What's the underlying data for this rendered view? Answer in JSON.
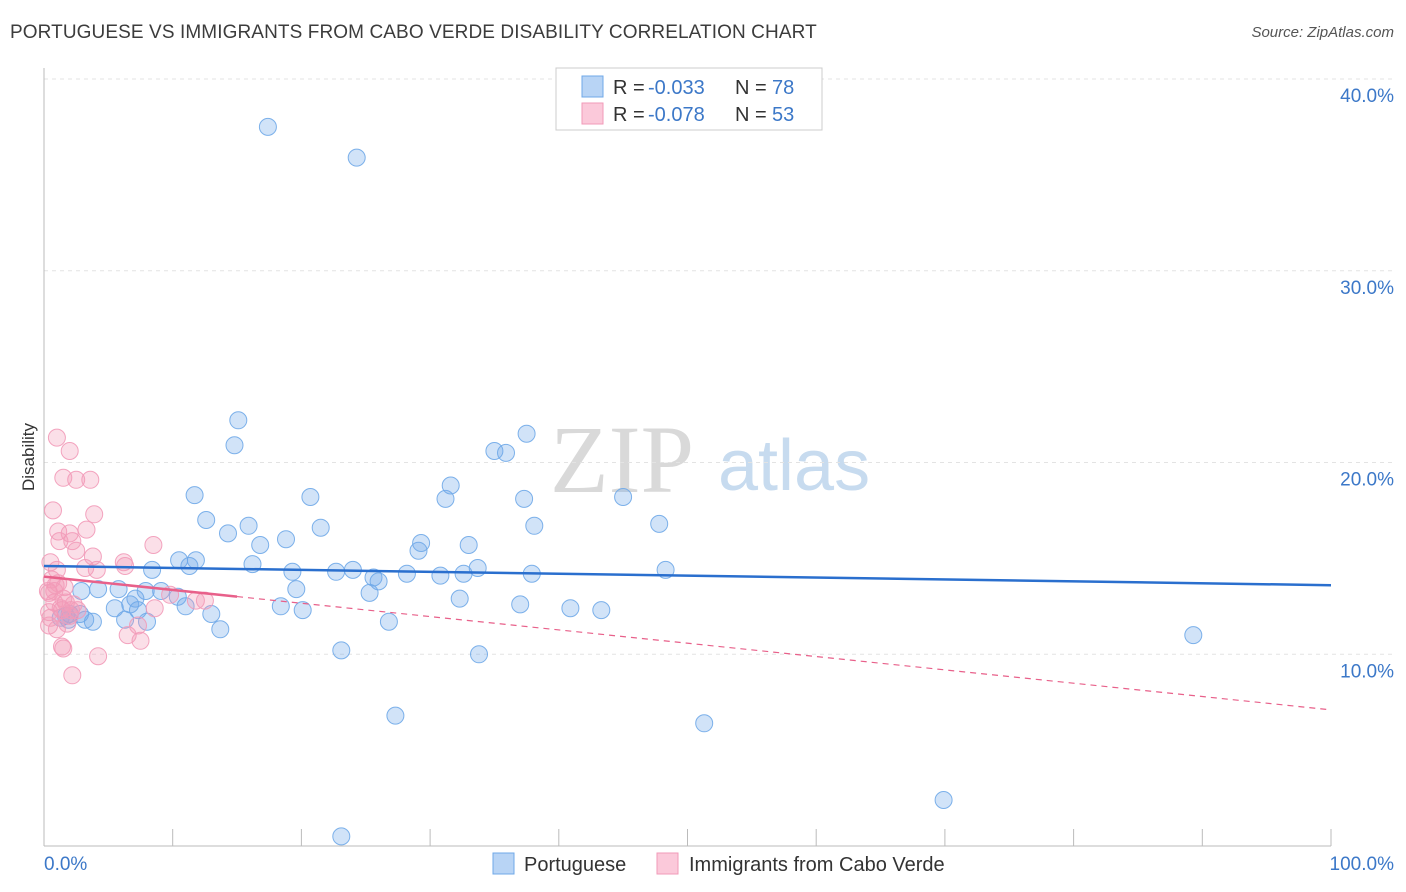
{
  "title": "PORTUGUESE VS IMMIGRANTS FROM CABO VERDE DISABILITY CORRELATION CHART",
  "source": "Source: ZipAtlas.com",
  "watermark": {
    "zip": "ZIP",
    "atlas": "atlas"
  },
  "legend": {
    "r_label": "R =",
    "n_label": "N =",
    "rows": [
      {
        "r": "-0.033",
        "n": "78"
      },
      {
        "r": "-0.078",
        "n": "53"
      }
    ]
  },
  "chart_data": {
    "type": "scatter",
    "title": "PORTUGUESE VS IMMIGRANTS FROM CABO VERDE DISABILITY CORRELATION CHART",
    "xlabel": "",
    "ylabel": "Disability",
    "xlim": [
      0,
      100
    ],
    "ylim": [
      0,
      40
    ],
    "x_tick_labels": [
      "0.0%",
      "100.0%"
    ],
    "y_ticks": [
      10,
      20,
      30,
      40
    ],
    "y_tick_labels": [
      "10.0%",
      "20.0%",
      "30.0%",
      "40.0%"
    ],
    "grid": true,
    "legend_position": "top-center",
    "series": [
      {
        "name": "Portuguese",
        "color": "#6fa8e8",
        "line_color": "#2a6fce",
        "r": -0.033,
        "n": 78,
        "trend": {
          "x": [
            0,
            100
          ],
          "y": [
            14.6,
            13.6
          ],
          "extent": "solid"
        },
        "points": [
          [
            17.4,
            37.5
          ],
          [
            24.3,
            35.9
          ],
          [
            15.1,
            22.2
          ],
          [
            14.8,
            20.9
          ],
          [
            11.7,
            18.3
          ],
          [
            12.6,
            17.0
          ],
          [
            14.3,
            16.3
          ],
          [
            15.9,
            16.7
          ],
          [
            16.8,
            15.7
          ],
          [
            10.5,
            14.9
          ],
          [
            11.8,
            14.9
          ],
          [
            11.3,
            14.6
          ],
          [
            16.2,
            14.7
          ],
          [
            18.8,
            16.0
          ],
          [
            20.7,
            18.2
          ],
          [
            21.5,
            16.6
          ],
          [
            19.3,
            14.3
          ],
          [
            22.7,
            14.3
          ],
          [
            24.0,
            14.4
          ],
          [
            25.6,
            14.0
          ],
          [
            26.0,
            13.8
          ],
          [
            25.3,
            13.2
          ],
          [
            19.6,
            13.4
          ],
          [
            8.4,
            14.4
          ],
          [
            7.9,
            13.3
          ],
          [
            9.1,
            13.3
          ],
          [
            10.4,
            13.0
          ],
          [
            5.8,
            13.4
          ],
          [
            4.2,
            13.4
          ],
          [
            2.9,
            13.3
          ],
          [
            7.1,
            12.9
          ],
          [
            5.5,
            12.4
          ],
          [
            6.7,
            12.6
          ],
          [
            7.3,
            12.3
          ],
          [
            11.0,
            12.5
          ],
          [
            13.0,
            12.1
          ],
          [
            8.0,
            11.7
          ],
          [
            6.3,
            11.8
          ],
          [
            3.8,
            11.7
          ],
          [
            3.2,
            11.8
          ],
          [
            1.9,
            11.8
          ],
          [
            1.3,
            11.9
          ],
          [
            2.0,
            12.1
          ],
          [
            1.7,
            12.0
          ],
          [
            13.7,
            11.3
          ],
          [
            18.4,
            12.5
          ],
          [
            20.1,
            12.3
          ],
          [
            23.1,
            10.2
          ],
          [
            26.8,
            11.7
          ],
          [
            28.2,
            14.2
          ],
          [
            29.1,
            15.4
          ],
          [
            29.3,
            15.8
          ],
          [
            31.2,
            18.1
          ],
          [
            31.6,
            18.8
          ],
          [
            30.8,
            14.1
          ],
          [
            32.6,
            14.2
          ],
          [
            33.0,
            15.7
          ],
          [
            33.7,
            14.5
          ],
          [
            32.3,
            12.9
          ],
          [
            35.0,
            20.6
          ],
          [
            35.9,
            20.5
          ],
          [
            37.5,
            21.5
          ],
          [
            37.0,
            12.6
          ],
          [
            37.9,
            14.2
          ],
          [
            38.1,
            16.7
          ],
          [
            37.3,
            18.1
          ],
          [
            40.9,
            12.4
          ],
          [
            43.3,
            12.3
          ],
          [
            45.0,
            18.2
          ],
          [
            47.8,
            16.8
          ],
          [
            48.3,
            14.4
          ],
          [
            33.8,
            10.0
          ],
          [
            27.3,
            6.8
          ],
          [
            51.3,
            6.4
          ],
          [
            69.9,
            2.4
          ],
          [
            23.1,
            0.5
          ],
          [
            89.3,
            11.0
          ],
          [
            2.8,
            12.1
          ]
        ]
      },
      {
        "name": "Immigrants from Cabo Verde",
        "color": "#f29ab8",
        "line_color": "#e8608a",
        "r": -0.078,
        "n": 53,
        "trend": {
          "x": [
            0,
            100
          ],
          "y": [
            14.05,
            7.1
          ],
          "solid_until": 15
        },
        "points": [
          [
            1.0,
            21.3
          ],
          [
            2.0,
            20.6
          ],
          [
            1.5,
            19.2
          ],
          [
            2.5,
            19.1
          ],
          [
            3.6,
            19.1
          ],
          [
            0.7,
            17.5
          ],
          [
            3.9,
            17.3
          ],
          [
            1.1,
            16.4
          ],
          [
            2.0,
            16.3
          ],
          [
            3.3,
            16.5
          ],
          [
            1.2,
            15.9
          ],
          [
            2.2,
            15.9
          ],
          [
            2.5,
            15.4
          ],
          [
            8.5,
            15.7
          ],
          [
            3.8,
            15.1
          ],
          [
            0.5,
            14.8
          ],
          [
            6.2,
            14.8
          ],
          [
            6.3,
            14.6
          ],
          [
            1.0,
            14.4
          ],
          [
            3.2,
            14.5
          ],
          [
            4.1,
            14.4
          ],
          [
            0.6,
            13.9
          ],
          [
            1.1,
            13.7
          ],
          [
            0.9,
            13.6
          ],
          [
            1.6,
            13.5
          ],
          [
            0.3,
            13.3
          ],
          [
            0.4,
            13.2
          ],
          [
            0.8,
            13.3
          ],
          [
            1.5,
            12.9
          ],
          [
            0.8,
            12.7
          ],
          [
            1.7,
            12.7
          ],
          [
            2.3,
            12.6
          ],
          [
            1.3,
            12.4
          ],
          [
            2.1,
            12.3
          ],
          [
            0.4,
            12.2
          ],
          [
            1.4,
            12.3
          ],
          [
            2.6,
            12.3
          ],
          [
            8.6,
            12.4
          ],
          [
            9.8,
            13.1
          ],
          [
            11.8,
            12.8
          ],
          [
            12.5,
            12.8
          ],
          [
            2.0,
            12.0
          ],
          [
            0.5,
            11.9
          ],
          [
            1.8,
            11.6
          ],
          [
            0.4,
            11.5
          ],
          [
            1.0,
            11.3
          ],
          [
            7.3,
            11.5
          ],
          [
            6.5,
            11.0
          ],
          [
            7.5,
            10.7
          ],
          [
            1.4,
            10.4
          ],
          [
            1.5,
            10.3
          ],
          [
            4.2,
            9.9
          ],
          [
            2.2,
            8.9
          ]
        ]
      }
    ]
  }
}
